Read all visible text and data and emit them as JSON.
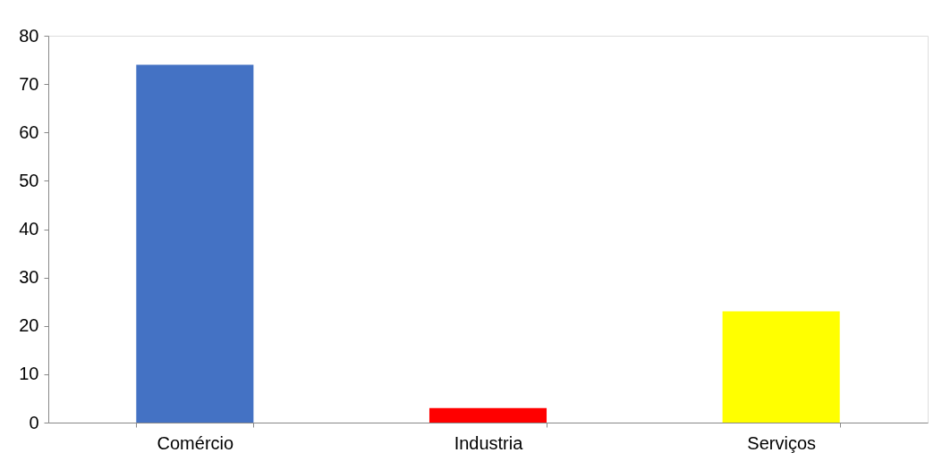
{
  "chart_data": {
    "type": "bar",
    "categories": [
      "Comércio",
      "Industria",
      "Serviços"
    ],
    "values": [
      74,
      3,
      23
    ],
    "colors": [
      "#4472c4",
      "#ff0000",
      "#ffff00"
    ],
    "ylim": [
      0,
      80
    ],
    "yticks": [
      0,
      10,
      20,
      30,
      40,
      50,
      60,
      70,
      80
    ],
    "grid": false,
    "legend": false
  }
}
